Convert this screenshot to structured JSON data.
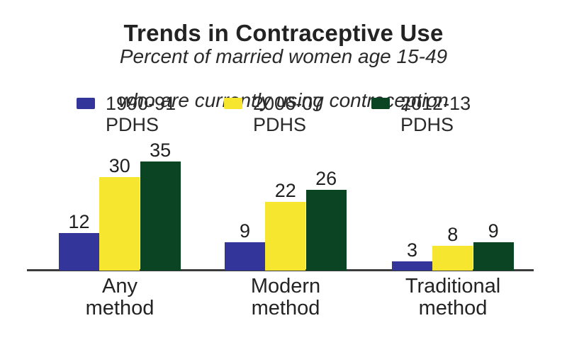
{
  "header": {
    "title": "Trends in Contraceptive Use",
    "subtitle_line1": "Percent of married women age 15-49",
    "subtitle_line2": "who are currently using contraception"
  },
  "legend": [
    {
      "line1": "1990-91",
      "line2": "PDHS",
      "color": "#33359a"
    },
    {
      "line1": "2006-07",
      "line2": "PDHS",
      "color": "#f6e62f"
    },
    {
      "line1": "2012-13",
      "line2": "PDHS",
      "color": "#0b4423"
    }
  ],
  "chart_data": {
    "type": "bar",
    "title": "Trends in Contraceptive Use",
    "subtitle": "Percent of married women age 15-49 who are currently using contraception",
    "categories": [
      "Any method",
      "Modern method",
      "Traditional method"
    ],
    "category_label_lines": [
      [
        "Any",
        "method"
      ],
      [
        "Modern",
        "method"
      ],
      [
        "Traditional",
        "method"
      ]
    ],
    "series": [
      {
        "name": "1990-91 PDHS",
        "color": "#33359a",
        "values": [
          12,
          9,
          3
        ]
      },
      {
        "name": "2006-07 PDHS",
        "color": "#f6e62f",
        "values": [
          30,
          22,
          8
        ]
      },
      {
        "name": "2012-13 PDHS",
        "color": "#0b4423",
        "values": [
          35,
          26,
          9
        ]
      }
    ],
    "xlabel": "",
    "ylabel": "",
    "ylim": [
      0,
      40
    ],
    "grid": false,
    "legend_position": "top",
    "data_labels": true,
    "axis_line_color": "#3c3c3c",
    "text_color": "#1f1f1f"
  }
}
